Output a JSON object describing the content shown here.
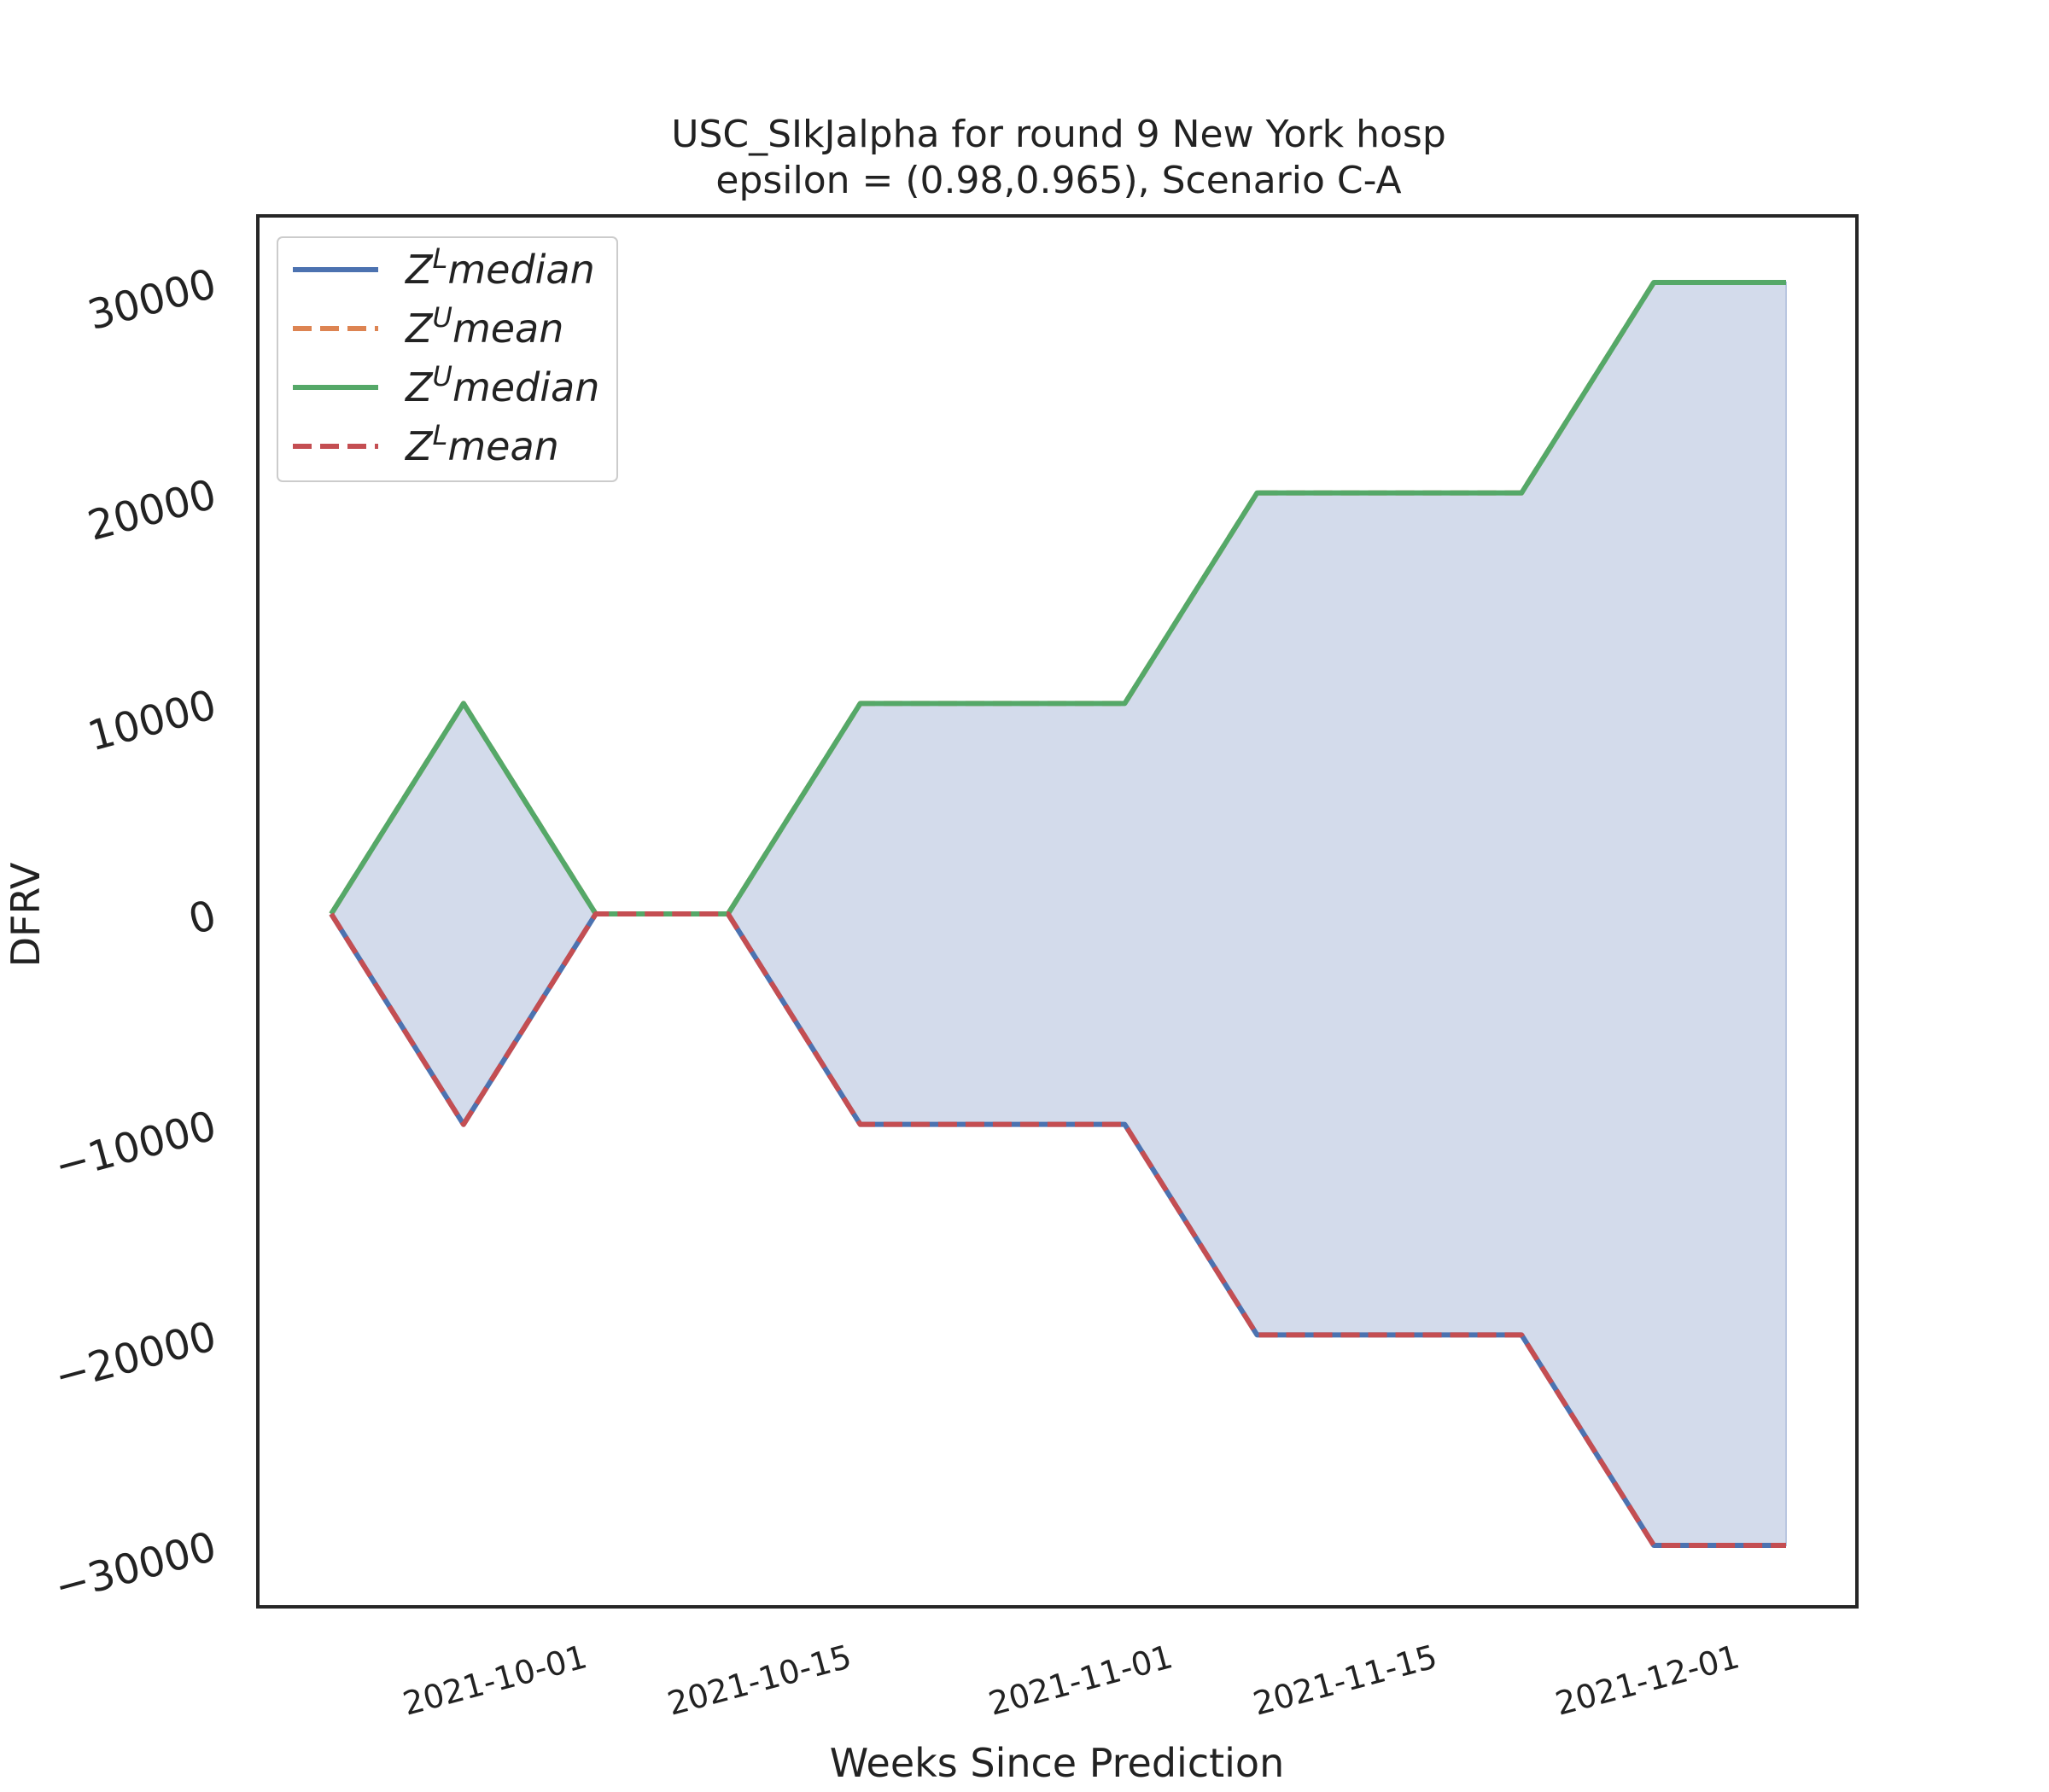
{
  "chart_data": {
    "type": "line",
    "title_line1": "USC_SIkJalpha for round 9 New York  hosp",
    "title_line2": "epsilon = (0.98,0.965), Scenario C-A",
    "xlabel": "Weeks Since Prediction",
    "ylabel": "DFRV",
    "x": [
      "2021-09-18",
      "2021-09-25",
      "2021-10-02",
      "2021-10-09",
      "2021-10-16",
      "2021-10-23",
      "2021-10-30",
      "2021-11-06",
      "2021-11-13",
      "2021-11-20",
      "2021-11-27",
      "2021-12-04"
    ],
    "xtick_labels": [
      "2021-10-01",
      "2021-10-15",
      "2021-11-01",
      "2021-11-15",
      "2021-12-01"
    ],
    "ylim": [
      -33000,
      33500
    ],
    "yticks": [
      -30000,
      -20000,
      -10000,
      0,
      10000,
      20000,
      30000
    ],
    "ytick_labels": [
      "−30000",
      "−20000",
      "−10000",
      "0",
      "10000",
      "20000",
      "30000"
    ],
    "series": [
      {
        "name": "median",
        "label_sup": "L",
        "color": "#4c72b0",
        "style": "solid",
        "values": [
          0,
          -10000,
          0,
          0,
          -10000,
          -10000,
          -10000,
          -20000,
          -20000,
          -20000,
          -30000,
          -30000
        ]
      },
      {
        "name": "mean",
        "label_sup": "U",
        "color": "#dd8452",
        "style": "dashed",
        "values": [
          0,
          10000,
          0,
          0,
          10000,
          10000,
          10000,
          20000,
          20000,
          20000,
          30000,
          30000
        ]
      },
      {
        "name": "median",
        "label_sup": "U",
        "color": "#55a868",
        "style": "solid",
        "values": [
          0,
          10000,
          0,
          0,
          10000,
          10000,
          10000,
          20000,
          20000,
          20000,
          30000,
          30000
        ]
      },
      {
        "name": "mean",
        "label_sup": "L",
        "color": "#c44e52",
        "style": "dashed",
        "values": [
          0,
          -10000,
          0,
          0,
          -10000,
          -10000,
          -10000,
          -20000,
          -20000,
          -20000,
          -30000,
          -30000
        ]
      }
    ],
    "fill_color": "#d3dbeb",
    "grid": false,
    "legend_position": "upper-left"
  }
}
